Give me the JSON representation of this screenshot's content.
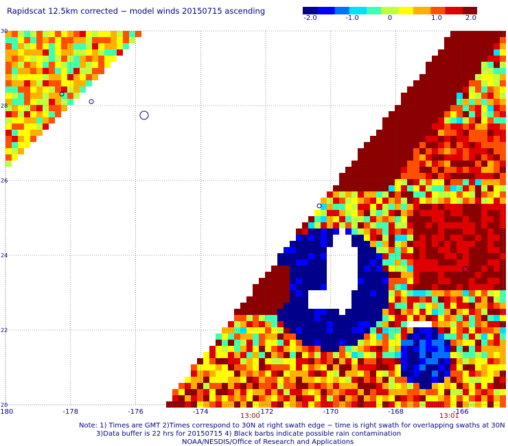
{
  "title": "Rapidscat 12.5km corrected − model winds 20150715 ascending",
  "colorbar": {
    "ticks": [
      "-2.0",
      "-1.0",
      "0",
      "1.0",
      "2.0"
    ],
    "min": -2.0,
    "max": 2.0,
    "colors": [
      "#00008b",
      "#0000ff",
      "#0070ff",
      "#00e0ff",
      "#40ffb0",
      "#c0ff40",
      "#ffff00",
      "#ffb000",
      "#ff5000",
      "#e00000",
      "#8b0000"
    ]
  },
  "map": {
    "lon_range": [
      -180,
      -164.7
    ],
    "lat_range": [
      20,
      30
    ],
    "x_ticks": [
      "-180",
      "-178",
      "-176",
      "-174",
      "-172",
      "-170",
      "-168",
      "-166"
    ],
    "y_ticks": [
      "30",
      "28",
      "26",
      "24",
      "22",
      "20"
    ],
    "grid_style": "dotted",
    "gap_color": "#ffffff"
  },
  "time_labels": [
    "13:00",
    "13:01"
  ],
  "notes": [
    "Note: 1) Times are GMT 2)Times correspond to 30N at right swath edge − time is right swath for overlapping swaths at 30N",
    "3)Data buffer is 22 hrs for 20150715 4) Black barbs indicate possible rain contamination",
    "NOAA/NESDIS/Office of Research and Applications"
  ]
}
